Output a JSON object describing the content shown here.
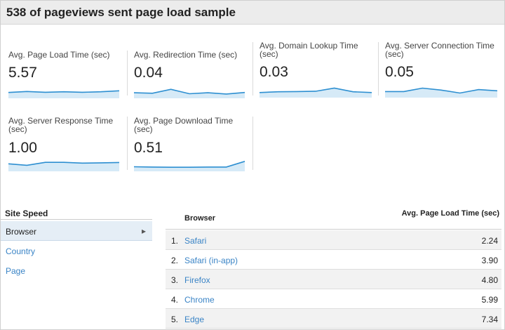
{
  "header": {
    "title": "538 of pageviews sent page load sample"
  },
  "metrics": [
    {
      "label": "Avg. Page Load Time (sec)",
      "value": "5.57",
      "trend": [
        0.38,
        0.48,
        0.4,
        0.45,
        0.4,
        0.45,
        0.55
      ]
    },
    {
      "label": "Avg. Redirection Time (sec)",
      "value": "0.04",
      "trend": [
        0.35,
        0.3,
        0.7,
        0.25,
        0.35,
        0.22,
        0.38
      ]
    },
    {
      "label": "Avg. Domain Lookup Time (sec)",
      "value": "0.03",
      "trend": [
        0.3,
        0.38,
        0.4,
        0.43,
        0.75,
        0.38,
        0.3
      ]
    },
    {
      "label": "Avg. Server Connection Time (sec)",
      "value": "0.05",
      "trend": [
        0.4,
        0.4,
        0.75,
        0.55,
        0.25,
        0.6,
        0.48
      ]
    },
    {
      "label": "Avg. Server Response Time (sec)",
      "value": "1.00",
      "trend": [
        0.55,
        0.4,
        0.7,
        0.7,
        0.62,
        0.65,
        0.68
      ]
    },
    {
      "label": "Avg. Page Download Time (sec)",
      "value": "0.51",
      "trend": [
        0.25,
        0.22,
        0.2,
        0.2,
        0.22,
        0.22,
        0.8
      ]
    }
  ],
  "sidebar": {
    "title": "Site Speed",
    "items": [
      {
        "label": "Browser",
        "active": true
      },
      {
        "label": "Country"
      },
      {
        "label": "Page"
      }
    ]
  },
  "table": {
    "headers": {
      "browser": "Browser",
      "time": "Avg. Page Load Time (sec)"
    },
    "rows": [
      {
        "num": "1.",
        "browser": "Safari",
        "time": "2.24"
      },
      {
        "num": "2.",
        "browser": "Safari (in-app)",
        "time": "3.90"
      },
      {
        "num": "3.",
        "browser": "Firefox",
        "time": "4.80"
      },
      {
        "num": "4.",
        "browser": "Chrome",
        "time": "5.99"
      },
      {
        "num": "5.",
        "browser": "Edge",
        "time": "7.34"
      }
    ]
  },
  "colors": {
    "link": "#3a84c6",
    "spark_line": "#2d8fd1",
    "spark_fill": "#d6eaf7",
    "active_row": "#e5eef6"
  },
  "icons": {
    "sidebar_active": "chevron-right-icon"
  }
}
